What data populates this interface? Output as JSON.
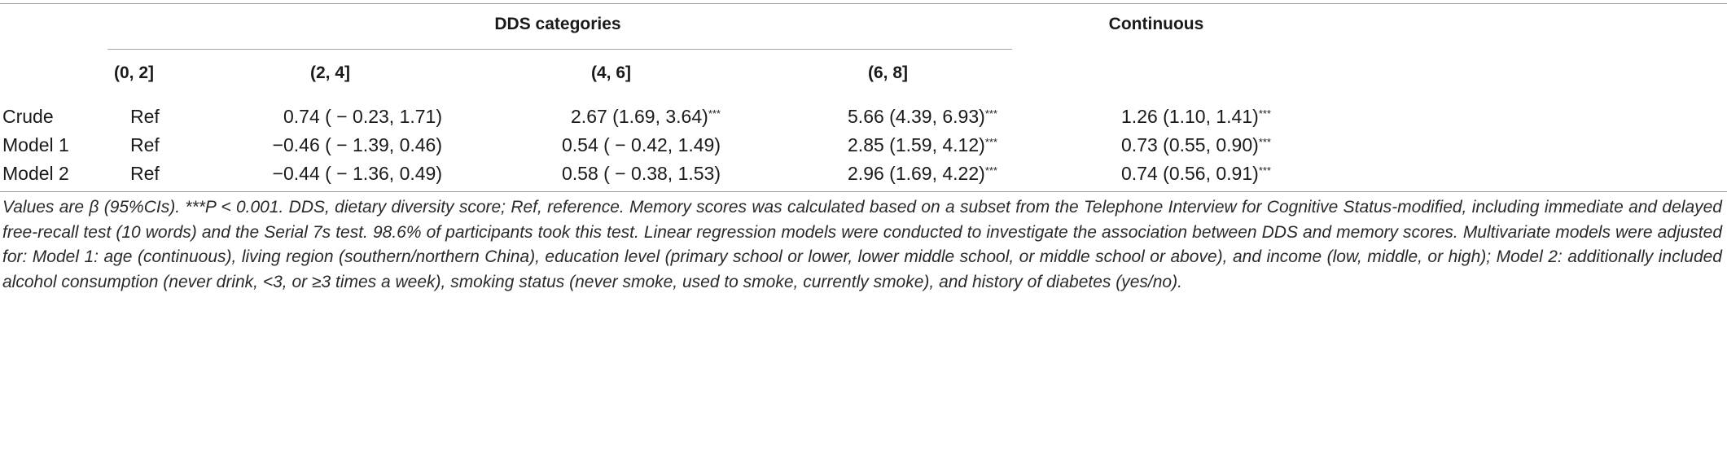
{
  "table": {
    "group_headers": {
      "dds_categories": "DDS categories",
      "continuous": "Continuous"
    },
    "columns": [
      "(0, 2]",
      "(2, 4]",
      "(4, 6]",
      "(6, 8]"
    ],
    "rows": [
      {
        "label": "Crude",
        "cells": [
          {
            "value": "Ref",
            "sig": ""
          },
          {
            "value": "0.74 ( − 0.23, 1.71)",
            "sig": ""
          },
          {
            "value": "2.67 (1.69, 3.64)",
            "sig": "***"
          },
          {
            "value": "5.66 (4.39, 6.93)",
            "sig": "***"
          },
          {
            "value": "1.26 (1.10, 1.41)",
            "sig": "***"
          }
        ]
      },
      {
        "label": "Model 1",
        "cells": [
          {
            "value": "Ref",
            "sig": ""
          },
          {
            "value": "−0.46 ( − 1.39, 0.46)",
            "sig": ""
          },
          {
            "value": "0.54 ( − 0.42, 1.49)",
            "sig": ""
          },
          {
            "value": "2.85 (1.59, 4.12)",
            "sig": "***"
          },
          {
            "value": "0.73 (0.55, 0.90)",
            "sig": "***"
          }
        ]
      },
      {
        "label": "Model 2",
        "cells": [
          {
            "value": "Ref",
            "sig": ""
          },
          {
            "value": "−0.44 ( − 1.36, 0.49)",
            "sig": ""
          },
          {
            "value": "0.58 ( − 0.38, 1.53)",
            "sig": ""
          },
          {
            "value": "2.96 (1.69, 4.22)",
            "sig": "***"
          },
          {
            "value": "0.74 (0.56, 0.91)",
            "sig": "***"
          }
        ]
      }
    ]
  },
  "footnote": "Values are β (95%CIs). ***P < 0.001. DDS, dietary diversity score; Ref, reference. Memory scores was calculated based on a subset from the Telephone Interview for Cognitive Status-modified, including immediate and delayed free-recall test (10 words) and the Serial 7s test. 98.6% of participants took this test. Linear regression models were conducted to investigate the association between DDS and memory scores. Multivariate models were adjusted for: Model 1: age (continuous), living region (southern/northern China), education level (primary school or lower, lower middle school, or middle school or above), and income (low, middle, or high); Model 2: additionally included alcohol consumption (never drink, <3, or ≥3 times a week), smoking status (never smoke, used to smoke, currently smoke), and history of diabetes (yes/no)."
}
